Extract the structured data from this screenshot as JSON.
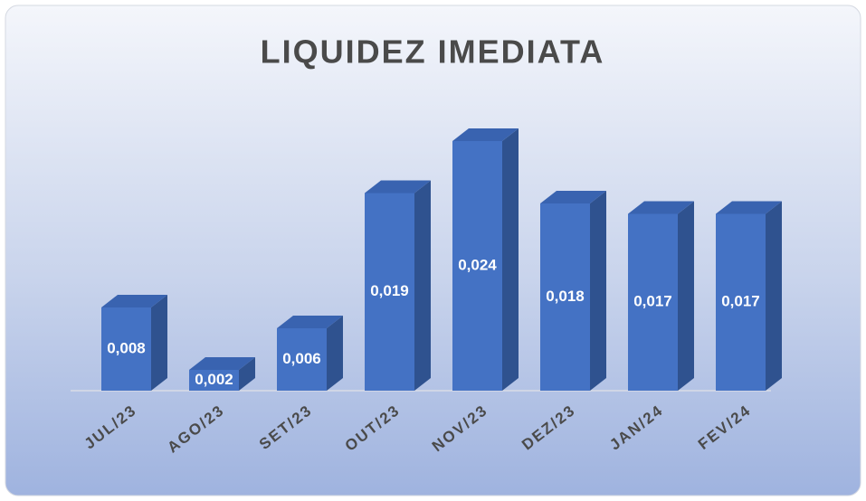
{
  "chart_data": {
    "type": "bar3d",
    "title": "LIQUIDEZ IMEDIATA",
    "categories": [
      "JUL/23",
      "AGO/23",
      "SET/23",
      "OUT/23",
      "NOV/23",
      "DEZ/23",
      "JAN/24",
      "FEV/24"
    ],
    "values": [
      0.008,
      0.002,
      0.006,
      0.019,
      0.024,
      0.018,
      0.017,
      0.017
    ],
    "value_labels": [
      "0,008",
      "0,002",
      "0,006",
      "0,019",
      "0,024",
      "0,018",
      "0,017",
      "0,017"
    ],
    "color": "#4472c4"
  }
}
